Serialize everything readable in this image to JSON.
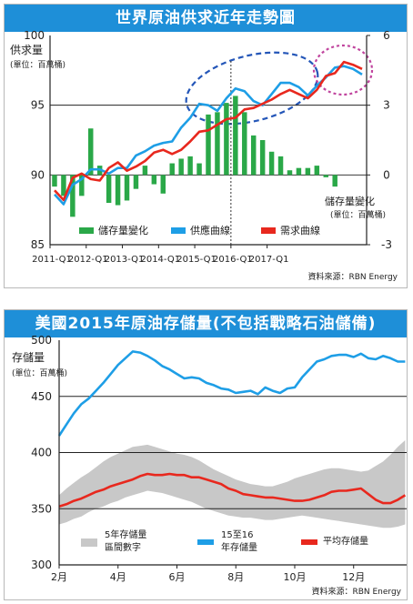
{
  "charts": [
    {
      "type": "line",
      "title": "世界原油供求近年走勢圖",
      "left_axis": {
        "label": "供求量",
        "unit": "(單位：百萬桶)",
        "ylim": [
          85,
          100
        ],
        "ticks": [
          85,
          90,
          95,
          100
        ]
      },
      "right_axis": {
        "label": "儲存量變化",
        "unit": "(單位：百萬桶)",
        "ylim": [
          -3,
          6
        ],
        "ticks": [
          -3,
          0,
          3,
          6
        ]
      },
      "x_ticks": [
        "2011-Q1",
        "2012-Q1",
        "2013-Q1",
        "2014-Q1",
        "2015-Q1",
        "2016-Q1",
        "2017-Q1"
      ],
      "legend": [
        "儲存量變化",
        "供應曲線",
        "需求曲線"
      ],
      "source": "資料來源：RBN Energy",
      "colors": {
        "bars": "#2aa848",
        "supply": "#1e9ee6",
        "demand": "#e8281e"
      },
      "x": [
        0,
        1,
        2,
        3,
        4,
        5,
        6,
        7,
        8,
        9,
        10,
        11,
        12,
        13,
        14,
        15,
        16,
        17,
        18,
        19,
        20,
        21,
        22,
        23,
        24,
        25,
        26,
        27,
        28,
        29,
        30,
        31,
        32,
        33,
        34
      ],
      "storage_change": [
        -0.5,
        -0.9,
        -1.8,
        -0.9,
        2.0,
        0.4,
        -1.2,
        -1.3,
        -1.1,
        -0.6,
        0.4,
        -0.4,
        -0.8,
        0.5,
        0.7,
        0.8,
        0.5,
        2.6,
        2.7,
        3.1,
        3.4,
        2.7,
        1.7,
        1.5,
        1.0,
        0.8,
        0.2,
        0.3,
        0.3,
        0.4,
        -0.1,
        -0.5,
        0,
        0,
        0
      ],
      "supply": [
        88.6,
        87.9,
        89.3,
        89.7,
        90.4,
        90.4,
        90.1,
        90.5,
        90.5,
        91.4,
        91.7,
        92.1,
        92.3,
        92.4,
        93.4,
        94.1,
        95.1,
        95.0,
        94.6,
        95.5,
        96.2,
        96.0,
        95.3,
        95.0,
        95.8,
        96.6,
        96.6,
        96.3,
        95.7,
        96.4,
        97.0,
        97.7,
        97.8,
        97.6,
        97.2
      ],
      "demand": [
        88.9,
        88.2,
        89.8,
        90.1,
        89.7,
        89.6,
        90.5,
        90.9,
        90.3,
        90.6,
        91.0,
        91.6,
        91.8,
        91.5,
        91.8,
        92.4,
        93.1,
        93.2,
        93.6,
        94.0,
        94.1,
        94.7,
        94.8,
        95.1,
        95.4,
        95.8,
        96.1,
        95.8,
        95.5,
        96.1,
        97.1,
        97.3,
        98.1,
        97.9,
        97.6
      ]
    },
    {
      "type": "area",
      "title": "美國2015年原油存儲量(不包括戰略石油儲備)",
      "y_axis": {
        "label": "存儲量",
        "unit": "(單位：百萬桶)",
        "ylim": [
          300,
          500
        ],
        "ticks": [
          300,
          350,
          400,
          450,
          500
        ]
      },
      "x_ticks": [
        "2月",
        "4月",
        "6月",
        "8月",
        "10月",
        "12月"
      ],
      "legend": [
        "5年存儲量區間數字",
        "15至16年存儲量",
        "平均存儲量"
      ],
      "source": "資料來源：RBN Energy",
      "colors": {
        "band": "#c8c8c8",
        "storage": "#1e9ee6",
        "average": "#e8281e"
      },
      "month": [
        2.0,
        2.25,
        2.5,
        2.75,
        3.0,
        3.25,
        3.5,
        3.75,
        4.0,
        4.25,
        4.5,
        4.75,
        5.0,
        5.25,
        5.5,
        5.75,
        6.0,
        6.25,
        6.5,
        6.75,
        7.0,
        7.25,
        7.5,
        7.75,
        8.0,
        8.25,
        8.5,
        8.75,
        9.0,
        9.25,
        9.5,
        9.75,
        10.0,
        10.25,
        10.5,
        10.75,
        11.0,
        11.25,
        11.5,
        11.75,
        12.0,
        12.25,
        12.5,
        12.75,
        13.0,
        13.25,
        13.5,
        13.75
      ],
      "storage_2015_16": [
        415,
        425,
        435,
        443,
        448,
        455,
        462,
        470,
        478,
        484,
        490,
        489,
        486,
        482,
        477,
        474,
        470,
        466,
        467,
        466,
        462,
        460,
        457,
        456,
        453,
        454,
        455,
        452,
        458,
        455,
        453,
        457,
        458,
        467,
        474,
        481,
        483,
        486,
        487,
        487,
        485,
        488,
        484,
        483,
        486,
        484,
        481,
        481
      ],
      "average": [
        352,
        354,
        357,
        359,
        362,
        365,
        367,
        370,
        372,
        374,
        376,
        379,
        381,
        380,
        380,
        381,
        380,
        380,
        378,
        378,
        376,
        374,
        372,
        368,
        366,
        363,
        362,
        361,
        360,
        360,
        359,
        358,
        357,
        357,
        358,
        360,
        362,
        365,
        366,
        366,
        367,
        368,
        363,
        358,
        355,
        355,
        358,
        362
      ],
      "band_upper": [
        362,
        368,
        373,
        378,
        382,
        387,
        392,
        396,
        399,
        402,
        405,
        406,
        407,
        405,
        403,
        401,
        399,
        398,
        396,
        393,
        389,
        385,
        382,
        379,
        376,
        374,
        372,
        371,
        370,
        370,
        372,
        374,
        377,
        379,
        381,
        383,
        385,
        386,
        386,
        385,
        384,
        383,
        384,
        388,
        392,
        398,
        405,
        411
      ],
      "band_lower": [
        336,
        338,
        341,
        343,
        347,
        350,
        352,
        355,
        357,
        360,
        362,
        364,
        366,
        365,
        364,
        362,
        360,
        358,
        356,
        353,
        350,
        348,
        346,
        344,
        343,
        342,
        342,
        341,
        340,
        340,
        341,
        342,
        343,
        344,
        343,
        342,
        341,
        340,
        339,
        338,
        337,
        336,
        335,
        334,
        333,
        333,
        334,
        336
      ]
    }
  ]
}
